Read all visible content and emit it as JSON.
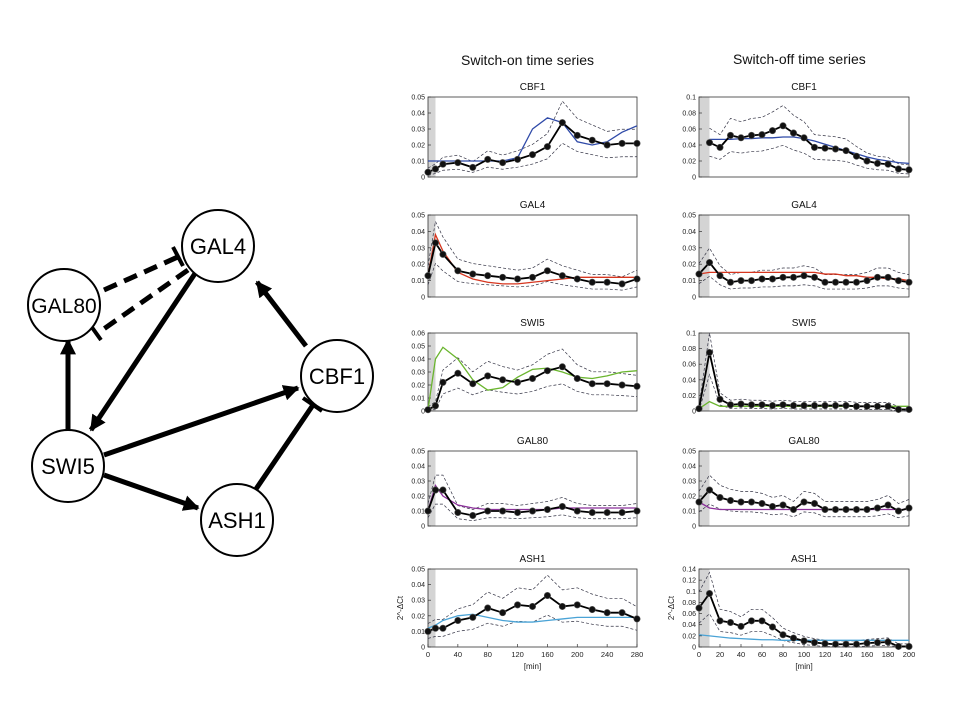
{
  "column_titles": [
    "Switch-on time series",
    "Switch-off time series"
  ],
  "network": {
    "nodes": [
      "GAL4",
      "GAL80",
      "CBF1",
      "SWI5",
      "ASH1"
    ]
  },
  "ylabel_bottom": "2^-ΔCt",
  "chart_data": [
    {
      "type": "line",
      "title": "CBF1",
      "column": "switch-on",
      "xlim": [
        0,
        280
      ],
      "ylim": [
        0,
        0.05
      ],
      "yticks": [
        "0",
        "0.01",
        "0.02",
        "0.03",
        "0.04",
        "0.05"
      ],
      "xticks": [],
      "xlabel": "",
      "highlight_band": [
        0,
        10
      ],
      "model_color": "#2f4aa8",
      "x": [
        0,
        10,
        20,
        40,
        60,
        80,
        100,
        120,
        140,
        160,
        180,
        200,
        220,
        240,
        260,
        280
      ],
      "series": [
        {
          "values": [
            0.003,
            0.005,
            0.008,
            0.009,
            0.006,
            0.011,
            0.009,
            0.011,
            0.014,
            0.019,
            0.034,
            0.026,
            0.023,
            0.02,
            0.021,
            0.021
          ]
        }
      ],
      "model": [
        0.01,
        0.01,
        0.01,
        0.01,
        0.01,
        0.01,
        0.01,
        0.012,
        0.03,
        0.037,
        0.034,
        0.022,
        0.02,
        0.022,
        0.028,
        0.032
      ]
    },
    {
      "type": "line",
      "title": "CBF1",
      "column": "switch-off",
      "xlim": [
        0,
        200
      ],
      "ylim": [
        0,
        0.1
      ],
      "yticks": [
        "0",
        "0.02",
        "0.04",
        "0.06",
        "0.08",
        "0.1"
      ],
      "xticks": [],
      "xlabel": "",
      "highlight_band": [
        0,
        10
      ],
      "model_color": "#2f4aa8",
      "x": [
        10,
        20,
        30,
        40,
        50,
        60,
        70,
        80,
        90,
        100,
        110,
        120,
        130,
        140,
        150,
        160,
        170,
        180,
        190,
        200
      ],
      "series": [
        {
          "values": [
            0.043,
            0.037,
            0.052,
            0.049,
            0.052,
            0.053,
            0.058,
            0.064,
            0.055,
            0.049,
            0.037,
            0.036,
            0.035,
            0.033,
            0.026,
            0.02,
            0.017,
            0.016,
            0.01,
            0.009
          ]
        }
      ],
      "model": [
        0.047,
        0.047,
        0.047,
        0.048,
        0.048,
        0.049,
        0.049,
        0.05,
        0.05,
        0.048,
        0.045,
        0.041,
        0.037,
        0.033,
        0.029,
        0.025,
        0.022,
        0.02,
        0.018,
        0.017
      ]
    },
    {
      "type": "line",
      "title": "GAL4",
      "column": "switch-on",
      "xlim": [
        0,
        280
      ],
      "ylim": [
        0,
        0.05
      ],
      "yticks": [
        "0",
        "0.01",
        "0.02",
        "0.03",
        "0.04",
        "0.05"
      ],
      "xticks": [],
      "xlabel": "",
      "highlight_band": [
        0,
        10
      ],
      "model_color": "#d7361f",
      "x": [
        0,
        10,
        20,
        40,
        60,
        80,
        100,
        120,
        140,
        160,
        180,
        200,
        220,
        240,
        260,
        280
      ],
      "series": [
        {
          "values": [
            0.013,
            0.033,
            0.026,
            0.016,
            0.014,
            0.013,
            0.012,
            0.011,
            0.012,
            0.016,
            0.013,
            0.011,
            0.009,
            0.009,
            0.008,
            0.011
          ]
        }
      ],
      "model": [
        0.013,
        0.038,
        0.028,
        0.015,
        0.011,
        0.009,
        0.008,
        0.008,
        0.009,
        0.01,
        0.011,
        0.012,
        0.012,
        0.012,
        0.012,
        0.012
      ]
    },
    {
      "type": "line",
      "title": "GAL4",
      "column": "switch-off",
      "xlim": [
        0,
        200
      ],
      "ylim": [
        0,
        0.05
      ],
      "yticks": [
        "0",
        "0.01",
        "0.02",
        "0.03",
        "0.04",
        "0.05"
      ],
      "xticks": [],
      "xlabel": "",
      "highlight_band": [
        0,
        10
      ],
      "model_color": "#d7361f",
      "x": [
        0,
        10,
        20,
        30,
        40,
        50,
        60,
        70,
        80,
        90,
        100,
        110,
        120,
        130,
        140,
        150,
        160,
        170,
        180,
        190,
        200
      ],
      "series": [
        {
          "values": [
            0.014,
            0.021,
            0.013,
            0.009,
            0.01,
            0.01,
            0.011,
            0.011,
            0.012,
            0.012,
            0.013,
            0.012,
            0.009,
            0.009,
            0.009,
            0.009,
            0.01,
            0.012,
            0.012,
            0.01,
            0.009
          ]
        }
      ],
      "model": [
        0.014,
        0.015,
        0.015,
        0.015,
        0.015,
        0.015,
        0.015,
        0.015,
        0.015,
        0.015,
        0.015,
        0.015,
        0.014,
        0.014,
        0.013,
        0.013,
        0.012,
        0.012,
        0.011,
        0.011,
        0.01
      ]
    },
    {
      "type": "line",
      "title": "SWI5",
      "column": "switch-on",
      "xlim": [
        0,
        280
      ],
      "ylim": [
        0,
        0.06
      ],
      "yticks": [
        "0",
        "0.01",
        "0.02",
        "0.03",
        "0.04",
        "0.05",
        "0.06"
      ],
      "xticks": [],
      "xlabel": "",
      "highlight_band": [
        0,
        10
      ],
      "model_color": "#6ab52e",
      "x": [
        0,
        10,
        20,
        40,
        60,
        80,
        100,
        120,
        140,
        160,
        180,
        200,
        220,
        240,
        260,
        280
      ],
      "series": [
        {
          "values": [
            0.001,
            0.004,
            0.022,
            0.029,
            0.021,
            0.027,
            0.024,
            0.022,
            0.025,
            0.031,
            0.034,
            0.025,
            0.021,
            0.021,
            0.02,
            0.019
          ]
        }
      ],
      "model": [
        0.001,
        0.04,
        0.049,
        0.04,
        0.024,
        0.016,
        0.018,
        0.026,
        0.032,
        0.033,
        0.03,
        0.026,
        0.025,
        0.027,
        0.03,
        0.031
      ]
    },
    {
      "type": "line",
      "title": "SWI5",
      "column": "switch-off",
      "xlim": [
        0,
        200
      ],
      "ylim": [
        0,
        0.1
      ],
      "yticks": [
        "0",
        "0.02",
        "0.04",
        "0.06",
        "0.08",
        "0.1"
      ],
      "xticks": [],
      "xlabel": "",
      "highlight_band": [
        0,
        10
      ],
      "model_color": "#6ab52e",
      "x": [
        0,
        10,
        20,
        30,
        40,
        50,
        60,
        70,
        80,
        90,
        100,
        110,
        120,
        130,
        140,
        150,
        160,
        170,
        180,
        190,
        200
      ],
      "series": [
        {
          "values": [
            0.003,
            0.075,
            0.015,
            0.008,
            0.009,
            0.008,
            0.008,
            0.007,
            0.008,
            0.007,
            0.007,
            0.007,
            0.007,
            0.007,
            0.007,
            0.006,
            0.006,
            0.006,
            0.006,
            0.002,
            0.002
          ]
        }
      ],
      "model": [
        0.003,
        0.012,
        0.006,
        0.006,
        0.006,
        0.006,
        0.006,
        0.006,
        0.006,
        0.006,
        0.006,
        0.006,
        0.006,
        0.006,
        0.006,
        0.006,
        0.006,
        0.006,
        0.006,
        0.006,
        0.006
      ]
    },
    {
      "type": "line",
      "title": "GAL80",
      "column": "switch-on",
      "xlim": [
        0,
        280
      ],
      "ylim": [
        0,
        0.05
      ],
      "yticks": [
        "0",
        "0.01",
        "0.02",
        "0.03",
        "0.04",
        "0.05"
      ],
      "xticks": [],
      "xlabel": "",
      "highlight_band": [
        0,
        10
      ],
      "model_color": "#8b2f9a",
      "x": [
        0,
        10,
        20,
        40,
        60,
        80,
        100,
        120,
        140,
        160,
        180,
        200,
        220,
        240,
        260,
        280
      ],
      "series": [
        {
          "values": [
            0.01,
            0.024,
            0.024,
            0.009,
            0.007,
            0.01,
            0.01,
            0.009,
            0.01,
            0.011,
            0.013,
            0.01,
            0.009,
            0.009,
            0.009,
            0.01
          ]
        }
      ],
      "model": [
        0.01,
        0.027,
        0.02,
        0.014,
        0.012,
        0.011,
        0.011,
        0.011,
        0.011,
        0.011,
        0.012,
        0.012,
        0.012,
        0.012,
        0.012,
        0.012
      ]
    },
    {
      "type": "line",
      "title": "GAL80",
      "column": "switch-off",
      "xlim": [
        0,
        200
      ],
      "ylim": [
        0,
        0.05
      ],
      "yticks": [
        "0",
        "0.01",
        "0.02",
        "0.03",
        "0.04",
        "0.05"
      ],
      "xticks": [],
      "xlabel": "",
      "highlight_band": [
        0,
        10
      ],
      "model_color": "#8b2f9a",
      "x": [
        0,
        10,
        20,
        30,
        40,
        50,
        60,
        70,
        80,
        90,
        100,
        110,
        120,
        130,
        140,
        150,
        160,
        170,
        180,
        190,
        200
      ],
      "series": [
        {
          "values": [
            0.016,
            0.024,
            0.019,
            0.017,
            0.016,
            0.016,
            0.015,
            0.013,
            0.014,
            0.011,
            0.016,
            0.015,
            0.011,
            0.011,
            0.011,
            0.011,
            0.011,
            0.012,
            0.014,
            0.01,
            0.012
          ]
        }
      ],
      "model": [
        0.016,
        0.012,
        0.011,
        0.011,
        0.011,
        0.011,
        0.011,
        0.011,
        0.011,
        0.011,
        0.011,
        0.011,
        0.011,
        0.011,
        0.011,
        0.011,
        0.011,
        0.011,
        0.011,
        0.011,
        0.011
      ]
    },
    {
      "type": "line",
      "title": "ASH1",
      "column": "switch-on",
      "xlim": [
        0,
        280
      ],
      "ylim": [
        0,
        0.05
      ],
      "yticks": [
        "0",
        "0.01",
        "0.02",
        "0.03",
        "0.04",
        "0.05"
      ],
      "xticks": [
        "0",
        "40",
        "80",
        "120",
        "160",
        "200",
        "240",
        "280"
      ],
      "xlabel": "[min]",
      "highlight_band": [
        0,
        10
      ],
      "model_color": "#4aa3d6",
      "x": [
        0,
        10,
        20,
        40,
        60,
        80,
        100,
        120,
        140,
        160,
        180,
        200,
        220,
        240,
        260,
        280
      ],
      "series": [
        {
          "values": [
            0.01,
            0.012,
            0.012,
            0.017,
            0.019,
            0.025,
            0.022,
            0.027,
            0.026,
            0.033,
            0.026,
            0.027,
            0.024,
            0.022,
            0.022,
            0.018
          ]
        }
      ],
      "model": [
        0.012,
        0.014,
        0.017,
        0.02,
        0.021,
        0.019,
        0.017,
        0.016,
        0.016,
        0.017,
        0.018,
        0.019,
        0.019,
        0.019,
        0.019,
        0.019
      ]
    },
    {
      "type": "line",
      "title": "ASH1",
      "column": "switch-off",
      "xlim": [
        0,
        200
      ],
      "ylim": [
        0,
        0.14
      ],
      "yticks": [
        "0",
        "0.02",
        "0.04",
        "0.06",
        "0.08",
        "0.1",
        "0.12",
        "0.14"
      ],
      "xticks": [
        "0",
        "20",
        "40",
        "60",
        "80",
        "100",
        "120",
        "140",
        "160",
        "180",
        "200"
      ],
      "xlabel": "[min]",
      "highlight_band": [
        0,
        10
      ],
      "model_color": "#4aa3d6",
      "x": [
        0,
        10,
        20,
        30,
        40,
        50,
        60,
        70,
        80,
        90,
        100,
        110,
        120,
        130,
        140,
        150,
        160,
        170,
        180,
        190,
        200
      ],
      "series": [
        {
          "values": [
            0.07,
            0.096,
            0.047,
            0.044,
            0.037,
            0.047,
            0.047,
            0.036,
            0.022,
            0.016,
            0.011,
            0.008,
            0.006,
            0.005,
            0.005,
            0.005,
            0.007,
            0.008,
            0.009,
            0.001,
            0.001
          ]
        }
      ],
      "model": [
        0.022,
        0.02,
        0.018,
        0.016,
        0.015,
        0.014,
        0.013,
        0.013,
        0.012,
        0.012,
        0.012,
        0.012,
        0.012,
        0.012,
        0.012,
        0.012,
        0.012,
        0.012,
        0.012,
        0.012,
        0.012
      ]
    }
  ]
}
